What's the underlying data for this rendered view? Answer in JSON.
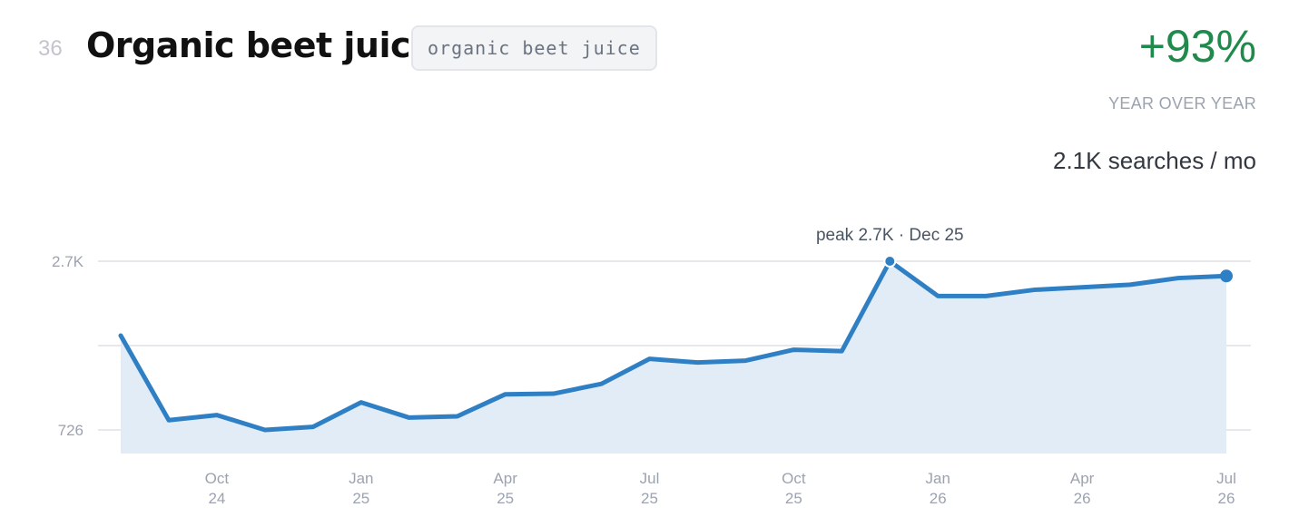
{
  "header": {
    "rank": "36",
    "title": "Organic beet juice",
    "tag": "organic beet juice",
    "growth": "+93%",
    "growth_label": "YEAR OVER YEAR",
    "volume": "2.1K searches / mo"
  },
  "colors": {
    "line": "#2f7fc4",
    "area": "#e1ecf7",
    "growth": "#1f8a4c",
    "grid": "#e8e8ec"
  },
  "chart_data": {
    "type": "area",
    "x": [
      "Aug 24",
      "Sep 24",
      "Oct 24",
      "Nov 24",
      "Dec 24",
      "Jan 25",
      "Feb 25",
      "Mar 25",
      "Apr 25",
      "May 25",
      "Jun 25",
      "Jul 25",
      "Aug 25",
      "Sep 25",
      "Oct 25",
      "Nov 25",
      "Dec 25",
      "Jan 26",
      "Feb 26",
      "Mar 26",
      "Apr 26",
      "May 26",
      "Jun 26",
      "Jul 26"
    ],
    "values": [
      1830,
      840,
      900,
      726,
      762,
      1048,
      870,
      885,
      1143,
      1150,
      1265,
      1558,
      1515,
      1537,
      1664,
      1648,
      2700,
      2293,
      2293,
      2365,
      2395,
      2425,
      2503,
      2527
    ],
    "ylim": [
      726,
      2700
    ],
    "yticks": [
      {
        "label": "2.7K",
        "value": 2700
      },
      {
        "label": "726",
        "value": 726
      }
    ],
    "xticks": [
      {
        "index": 2,
        "month": "Oct",
        "year": "24"
      },
      {
        "index": 5,
        "month": "Jan",
        "year": "25"
      },
      {
        "index": 8,
        "month": "Apr",
        "year": "25"
      },
      {
        "index": 11,
        "month": "Jul",
        "year": "25"
      },
      {
        "index": 14,
        "month": "Oct",
        "year": "25"
      },
      {
        "index": 17,
        "month": "Jan",
        "year": "26"
      },
      {
        "index": 20,
        "month": "Apr",
        "year": "26"
      },
      {
        "index": 23,
        "month": "Jul",
        "year": "26"
      }
    ],
    "peak": {
      "index": 16,
      "label": "peak 2.7K · Dec 25"
    },
    "grid": true
  }
}
